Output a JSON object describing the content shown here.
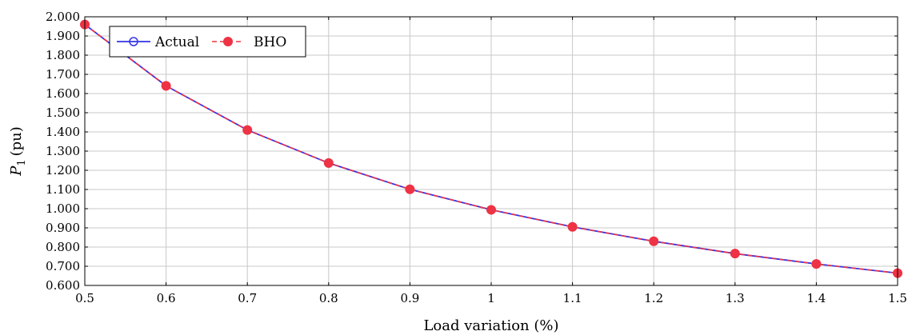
{
  "chart_data": {
    "type": "line",
    "xlabel": "Load variation (%)",
    "ylabel": "P",
    "ylabel_subscript": "1",
    "ylabel_unit": "(pu)",
    "xlim": [
      0.5,
      1.5
    ],
    "ylim": [
      0.6,
      2.0
    ],
    "xticks": [
      0.5,
      0.6,
      0.7,
      0.8,
      0.9,
      1.0,
      1.1,
      1.2,
      1.3,
      1.4,
      1.5
    ],
    "xtick_labels": [
      "0.5",
      "0.6",
      "0.7",
      "0.8",
      "0.9",
      "1",
      "1.1",
      "1.2",
      "1.3",
      "1.4",
      "1.5"
    ],
    "yticks": [
      0.6,
      0.7,
      0.8,
      0.9,
      1.0,
      1.1,
      1.2,
      1.3,
      1.4,
      1.5,
      1.6,
      1.7,
      1.8,
      1.9,
      2.0
    ],
    "ytick_labels": [
      "0.600",
      "0.700",
      "0.800",
      "0.900",
      "1.000",
      "1.100",
      "1.200",
      "1.300",
      "1.400",
      "1.500",
      "1.600",
      "1.700",
      "1.800",
      "1.900",
      "2.000"
    ],
    "grid": true,
    "legend_position": "top-left",
    "x": [
      0.5,
      0.6,
      0.7,
      0.8,
      0.9,
      1.0,
      1.1,
      1.2,
      1.3,
      1.4,
      1.5
    ],
    "series": [
      {
        "name": "Actual",
        "color": "#3333e6",
        "line_style": "solid",
        "marker": "open-circle",
        "values": [
          1.96,
          1.64,
          1.41,
          1.238,
          1.101,
          0.994,
          0.905,
          0.83,
          0.766,
          0.712,
          0.664
        ]
      },
      {
        "name": "BHO",
        "color": "#ee3344",
        "line_style": "dashed",
        "marker": "filled-circle",
        "values": [
          1.96,
          1.64,
          1.41,
          1.238,
          1.101,
          0.994,
          0.905,
          0.83,
          0.766,
          0.712,
          0.664
        ]
      }
    ]
  }
}
